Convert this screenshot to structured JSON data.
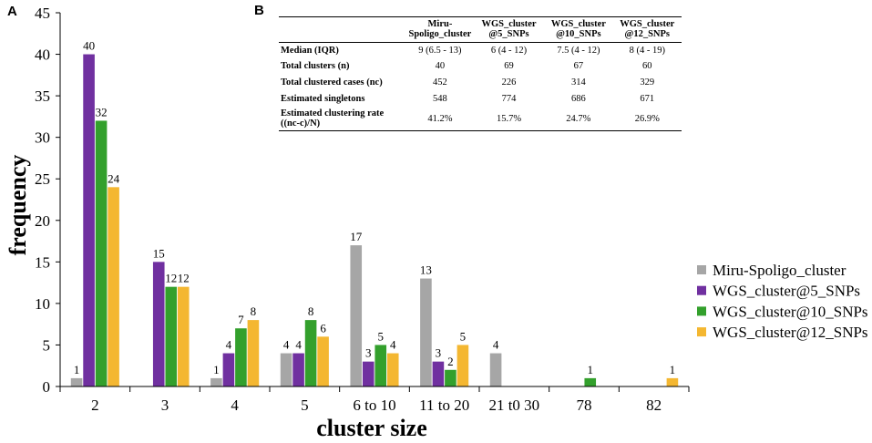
{
  "panel_a_label": "A",
  "panel_b_label": "B",
  "chart_data": {
    "type": "bar",
    "title": "",
    "xlabel": "cluster size",
    "ylabel": "frequency",
    "ylim": [
      0,
      45
    ],
    "yticks": [
      0,
      5,
      10,
      15,
      20,
      25,
      30,
      35,
      40,
      45
    ],
    "categories": [
      "2",
      "3",
      "4",
      "5",
      "6 to 10",
      "11 to 20",
      "21 t0 30",
      "78",
      "82"
    ],
    "series": [
      {
        "name": "Miru-Spoligo_cluster",
        "color": "#a6a6a6",
        "values": [
          1,
          null,
          1,
          4,
          17,
          13,
          4,
          null,
          null
        ]
      },
      {
        "name": "WGS_cluster@5_SNPs",
        "color": "#7030a0",
        "values": [
          40,
          15,
          4,
          4,
          3,
          3,
          null,
          null,
          null
        ]
      },
      {
        "name": "WGS_cluster@10_SNPs",
        "color": "#33a02c",
        "values": [
          32,
          12,
          7,
          8,
          5,
          2,
          null,
          1,
          null
        ]
      },
      {
        "name": "WGS_cluster@12_SNPs",
        "color": "#f4b731",
        "values": [
          24,
          12,
          8,
          6,
          4,
          5,
          null,
          null,
          1
        ]
      }
    ],
    "legend_position": "right"
  },
  "table": {
    "columns": [
      "",
      "Miru-\nSpoligo_cluster",
      "WGS_cluster\n@5_SNPs",
      "WGS_cluster\n@10_SNPs",
      "WGS_cluster\n@12_SNPs"
    ],
    "rows": [
      {
        "metric": "Median (IQR)",
        "values": [
          "9 (6.5 - 13)",
          "6 (4 - 12)",
          "7.5 (4 - 12)",
          "8 (4 - 19)"
        ]
      },
      {
        "metric": "Total clusters (n)",
        "values": [
          "40",
          "69",
          "67",
          "60"
        ]
      },
      {
        "metric": "Total clustered cases (nc)",
        "values": [
          "452",
          "226",
          "314",
          "329"
        ]
      },
      {
        "metric": "Estimated singletons",
        "values": [
          "548",
          "774",
          "686",
          "671"
        ]
      },
      {
        "metric": "Estimated clustering rate\n((nc-c)/N)",
        "values": [
          "41.2%",
          "15.7%",
          "24.7%",
          "26.9%"
        ]
      }
    ]
  }
}
